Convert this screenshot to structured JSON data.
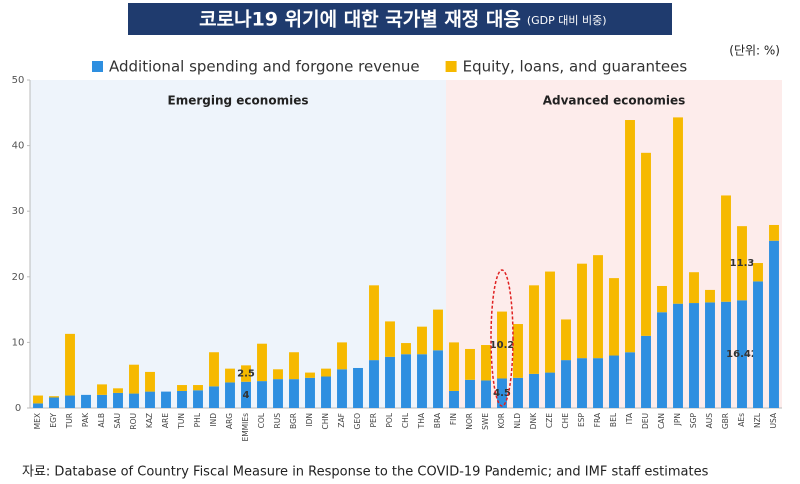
{
  "chart_data": {
    "type": "stacked-bar",
    "title": "코로나19 위기에 대한 국가별 재정 대응",
    "subtitle": "(GDP 대비 비중)",
    "unit_note": "(단위: %)",
    "source": "자료: Database of Country Fiscal Measure in Response to the COVID-19 Pandemic; and IMF staff estimates",
    "categories": [
      "MEX",
      "EGY",
      "TUR",
      "PAK",
      "ALB",
      "SAU",
      "ROU",
      "KAZ",
      "ARE",
      "TUN",
      "PHL",
      "IND",
      "ARG",
      "EMMIEs",
      "COL",
      "RUS",
      "BGR",
      "IDN",
      "CHN",
      "ZAF",
      "GEO",
      "PER",
      "POL",
      "CHL",
      "THA",
      "BRA",
      "FIN",
      "NOR",
      "SWE",
      "KOR",
      "NLD",
      "DNK",
      "CZE",
      "CHE",
      "ESP",
      "FRA",
      "BEL",
      "ITA",
      "DEU",
      "CAN",
      "JPN",
      "SGP",
      "AUS",
      "GBR",
      "AEs",
      "NZL",
      "USA"
    ],
    "series": [
      {
        "name": "Additional spending and forgone revenue",
        "color": "#2e8fe0",
        "values": [
          0.7,
          1.6,
          1.9,
          2.0,
          2.0,
          2.3,
          2.2,
          2.5,
          2.5,
          2.6,
          2.7,
          3.3,
          3.9,
          4,
          4.1,
          4.4,
          4.4,
          4.6,
          4.8,
          5.9,
          6.1,
          7.3,
          7.8,
          8.2,
          8.2,
          8.8,
          2.6,
          4.3,
          4.2,
          4.5,
          4.6,
          5.2,
          5.4,
          7.3,
          7.6,
          7.6,
          8.0,
          8.5,
          11.0,
          14.6,
          15.9,
          16.0,
          16.1,
          16.2,
          16.42,
          19.3,
          25.5
        ]
      },
      {
        "name": "Equity, loans, and guarantees",
        "color": "#f6b900",
        "values": [
          1.2,
          0.2,
          9.4,
          0,
          1.6,
          0.7,
          4.4,
          3.0,
          0,
          0.9,
          0.8,
          5.2,
          2.1,
          2.5,
          5.7,
          1.5,
          4.1,
          0.8,
          1.2,
          4.1,
          0,
          11.4,
          5.4,
          1.7,
          4.2,
          6.2,
          7.4,
          4.7,
          5.4,
          10.2,
          8.2,
          13.5,
          15.4,
          6.2,
          14.4,
          15.7,
          11.8,
          35.4,
          27.9,
          4.0,
          28.4,
          4.7,
          1.9,
          16.2,
          11.3,
          2.8,
          2.4
        ]
      }
    ],
    "data_labels_for": [
      "EMMIEs",
      "KOR",
      "AEs"
    ],
    "regions": [
      {
        "label": "Emerging economies",
        "from": "MEX",
        "to": "BRA",
        "color": "#eef4fb"
      },
      {
        "label": "Advanced economies",
        "from": "FIN",
        "to": "USA",
        "color": "#fdeceb"
      }
    ],
    "highlight": "KOR",
    "ylim": [
      0,
      50
    ],
    "yticks": [
      0,
      10,
      20,
      30,
      40,
      50
    ]
  }
}
